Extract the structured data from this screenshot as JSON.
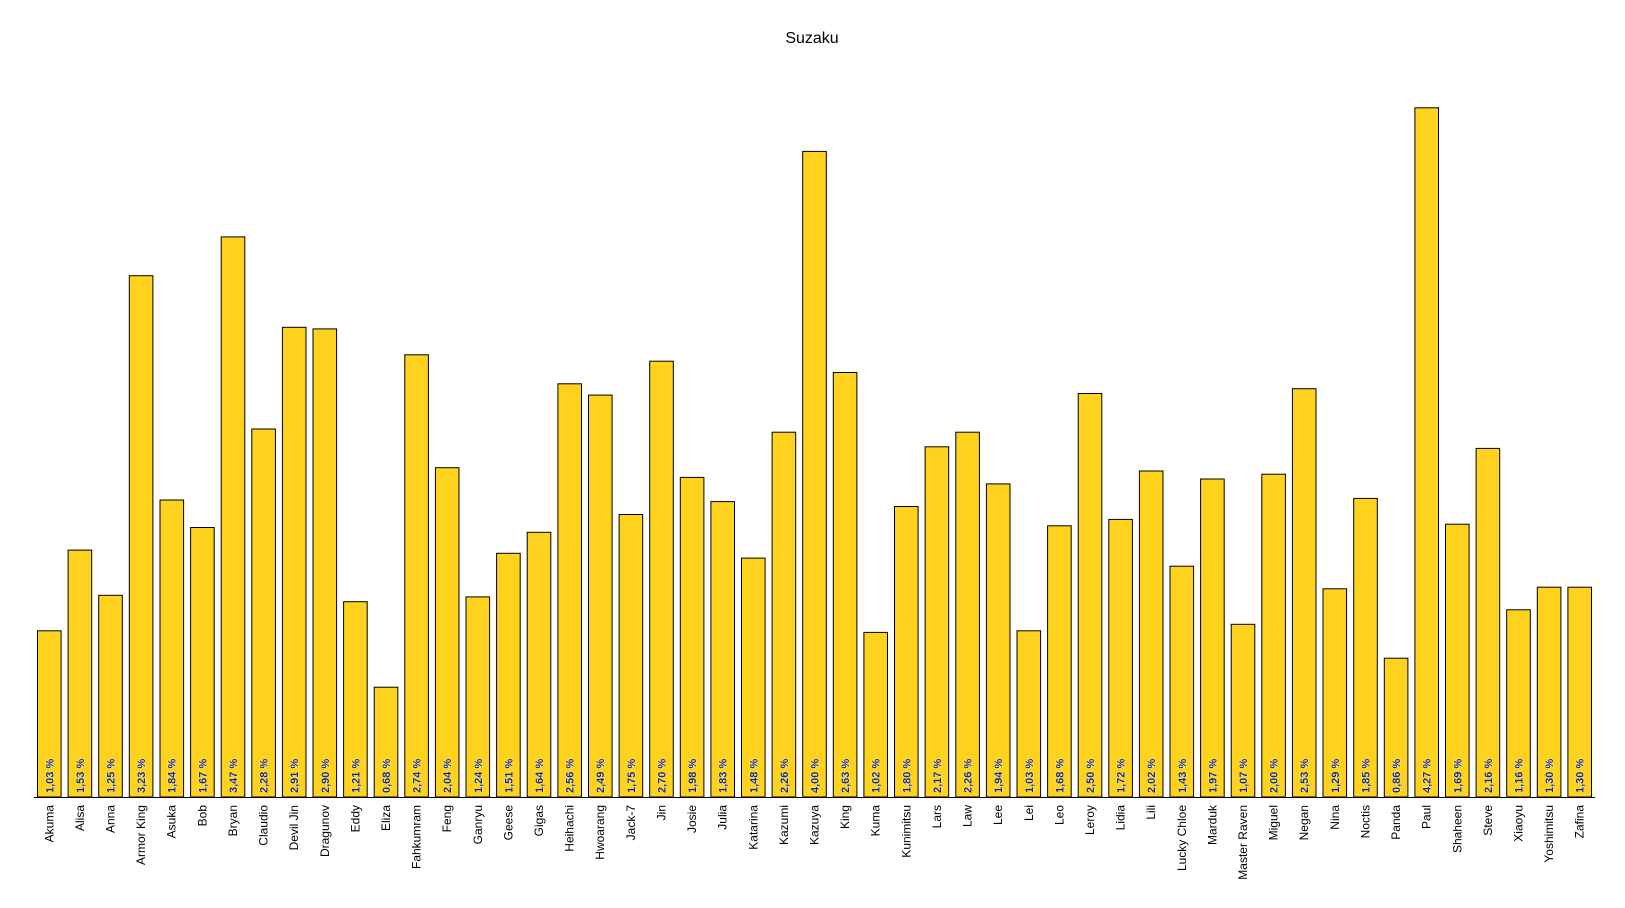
{
  "chart_data": {
    "type": "bar",
    "title": "Suzaku",
    "xlabel": "",
    "ylabel": "",
    "ylim": [
      0,
      4.5
    ],
    "grid": false,
    "legend": "none",
    "bar_color": "#FFD21E",
    "categories": [
      "Akuma",
      "Alisa",
      "Anna",
      "Armor King",
      "Asuka",
      "Bob",
      "Bryan",
      "Claudio",
      "Devil Jin",
      "Dragunov",
      "Eddy",
      "Eliza",
      "Fahkumram",
      "Feng",
      "Ganryu",
      "Geese",
      "Gigas",
      "Heihachi",
      "Hwoarang",
      "Jack-7",
      "Jin",
      "Josie",
      "Julia",
      "Katarina",
      "Kazumi",
      "Kazuya",
      "King",
      "Kuma",
      "Kunimitsu",
      "Lars",
      "Law",
      "Lee",
      "Lei",
      "Leo",
      "Leroy",
      "Lidia",
      "Lili",
      "Lucky Chloe",
      "Marduk",
      "Master Raven",
      "Miguel",
      "Negan",
      "Nina",
      "Noctis",
      "Panda",
      "Paul",
      "Shaheen",
      "Steve",
      "Xiaoyu",
      "Yoshimitsu",
      "Zafina"
    ],
    "values": [
      1.03,
      1.53,
      1.25,
      3.23,
      1.84,
      1.67,
      3.47,
      2.28,
      2.91,
      2.9,
      1.21,
      0.68,
      2.74,
      2.04,
      1.24,
      1.51,
      1.64,
      2.56,
      2.49,
      1.75,
      2.7,
      1.98,
      1.83,
      1.48,
      2.26,
      4.0,
      2.63,
      1.02,
      1.8,
      2.17,
      2.26,
      1.94,
      1.03,
      1.68,
      2.5,
      1.72,
      2.02,
      1.43,
      1.97,
      1.07,
      2.0,
      2.53,
      1.29,
      1.85,
      0.86,
      4.27,
      1.69,
      2.16,
      1.16,
      1.3,
      1.3
    ],
    "value_labels": [
      "1,03 %",
      "1,53 %",
      "1,25 %",
      "3,23 %",
      "1,84 %",
      "1,67 %",
      "3,47 %",
      "2,28 %",
      "2,91 %",
      "2,90 %",
      "1,21 %",
      "0,68 %",
      "2,74 %",
      "2,04 %",
      "1,24 %",
      "1,51 %",
      "1,64 %",
      "2,56 %",
      "2,49 %",
      "1,75 %",
      "2,70 %",
      "1,98 %",
      "1,83 %",
      "1,48 %",
      "2,26 %",
      "4,00 %",
      "2,63 %",
      "1,02 %",
      "1,80 %",
      "2,17 %",
      "2,26 %",
      "1,94 %",
      "1,03 %",
      "1,68 %",
      "2,50 %",
      "1,72 %",
      "2,02 %",
      "1,43 %",
      "1,97 %",
      "1,07 %",
      "2,00 %",
      "2,53 %",
      "1,29 %",
      "1,85 %",
      "0,86 %",
      "4,27 %",
      "1,69 %",
      "2,16 %",
      "1,16 %",
      "1,30 %",
      "1,30 %"
    ]
  }
}
